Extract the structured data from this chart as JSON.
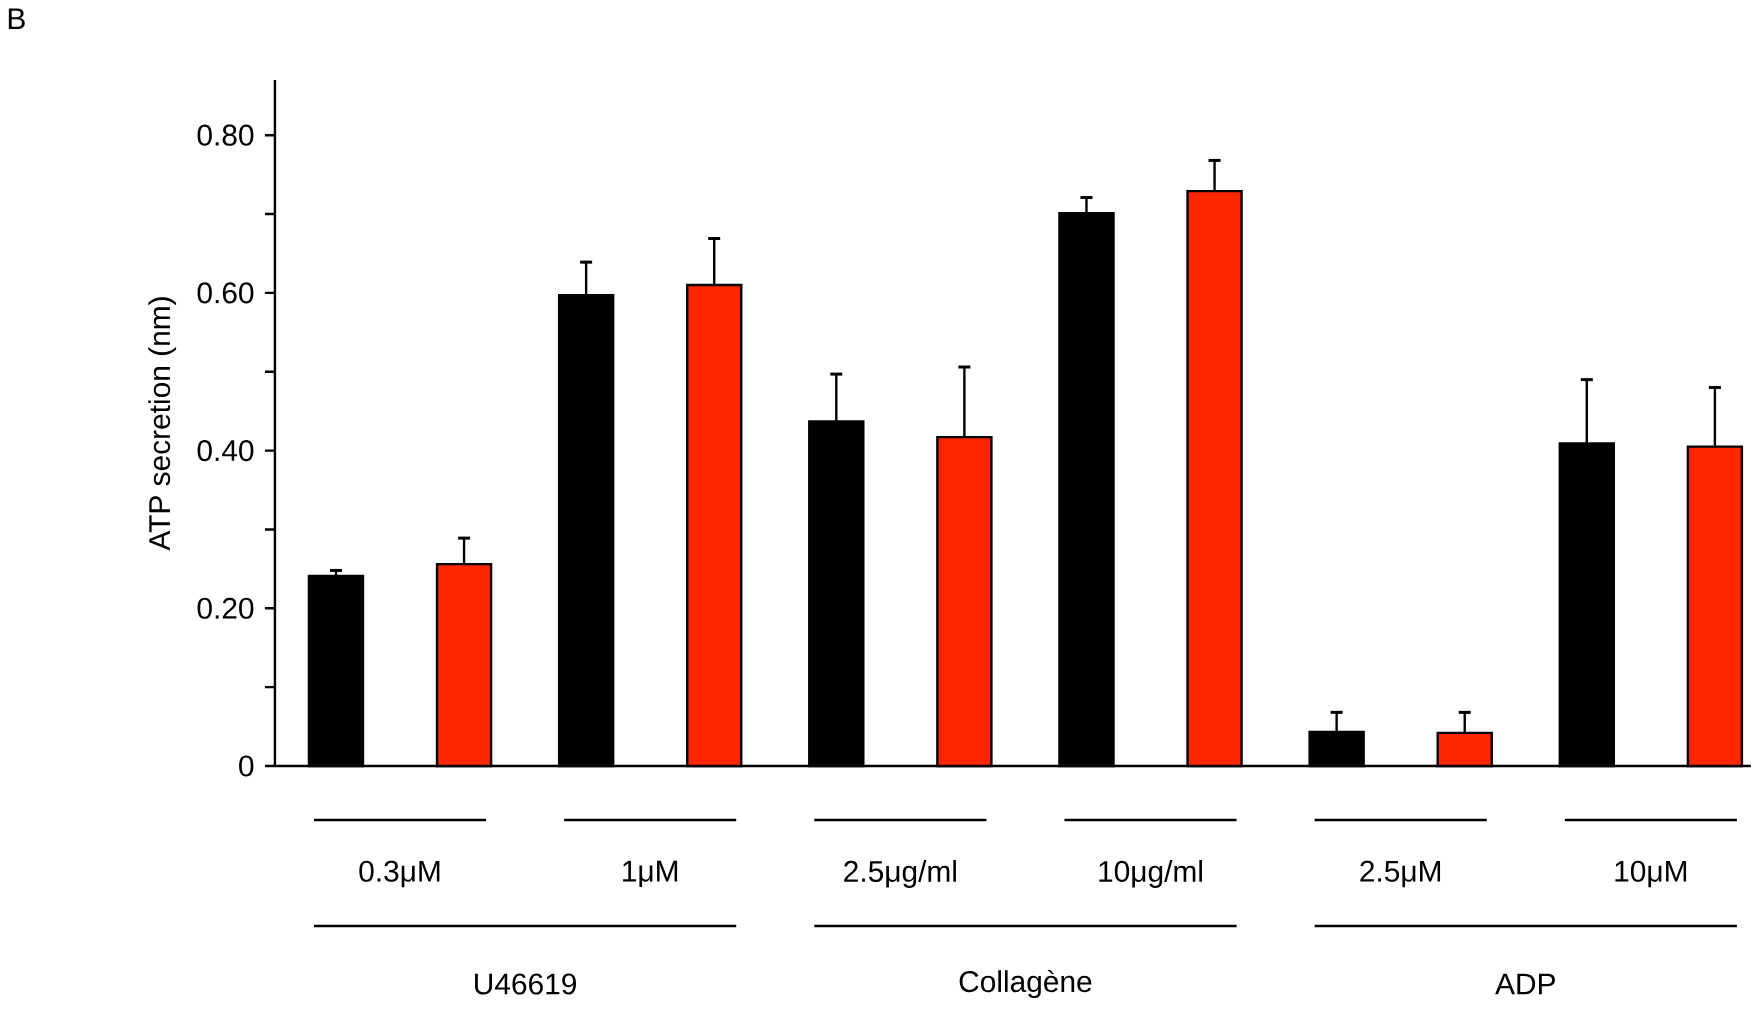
{
  "chart_data": {
    "type": "bar",
    "ylabel": "ATP secretion (nm)",
    "categories": [
      "0.3μM",
      "1μM",
      "2.5μg/ml",
      "10μg/ml",
      "2.5μM",
      "10μM"
    ],
    "series": [
      {
        "color": "#000000",
        "values": [
          0.241,
          0.597,
          0.437,
          0.701,
          0.043,
          0.409
        ],
        "errors": [
          [
            0.241,
            0.248
          ],
          [
            0.597,
            0.639
          ],
          [
            0.437,
            0.497
          ],
          [
            0.701,
            0.721
          ],
          [
            0.043,
            0.068
          ],
          [
            0.409,
            0.49
          ]
        ]
      },
      {
        "color": "#ff2600",
        "values": [
          0.256,
          0.61,
          0.417,
          0.729,
          0.042,
          0.405
        ],
        "errors": [
          [
            0.256,
            0.289
          ],
          [
            0.61,
            0.669
          ],
          [
            0.417,
            0.506
          ],
          [
            0.729,
            0.768
          ],
          [
            0.042,
            0.068
          ],
          [
            0.405,
            0.48
          ]
        ]
      }
    ],
    "ylim": [
      0,
      0.87
    ],
    "yticks": [
      0,
      {
        "value": 0.1,
        "label": null
      },
      {
        "value": 0.2,
        "label": "0.20"
      },
      {
        "value": 0.3,
        "label": null
      },
      {
        "value": 0.4,
        "label": "0.40"
      },
      {
        "value": 0.5,
        "label": null
      },
      {
        "value": 0.6,
        "label": "0.60"
      },
      {
        "value": 0.7,
        "label": null
      },
      {
        "value": 0.8,
        "label": "0.80"
      }
    ],
    "annotations": [
      "B",
      "U46619",
      "Collagène",
      "ADP"
    ]
  }
}
